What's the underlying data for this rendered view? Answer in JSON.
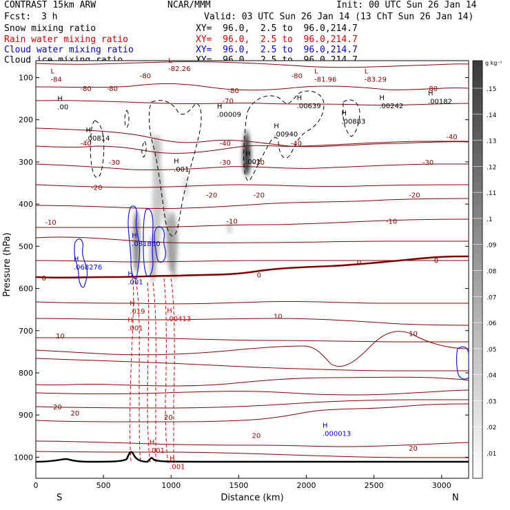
{
  "header": {
    "model": "CONTRAST 15km ARW",
    "org": "NCAR/MMM",
    "init": "Init: 00 UTC Sun 26 Jan 14",
    "fcst_label": "Fcst:",
    "fcst_value": "3 h",
    "valid": "Valid: 03 UTC Sun 26 Jan 14 (13 ChT Sun 26 Jan 14)"
  },
  "legend": [
    {
      "name": "Snow mixing ratio",
      "xy": "XY=  96.0,  2.5 to  96.0,214.7",
      "color": "#000000"
    },
    {
      "name": "Rain water mixing ratio",
      "xy": "XY=  96.0,  2.5 to  96.0,214.7",
      "color": "#cc0000"
    },
    {
      "name": "Cloud water mixing ratio",
      "xy": "XY=  96.0,  2.5 to  96.0,214.7",
      "color": "#0000cc"
    },
    {
      "name": "Cloud ice mixing ratio",
      "xy": "XY=  96.0,  2.5 to  96.0,214.7",
      "color": "#000000"
    }
  ],
  "chart_data": {
    "type": "cross-section",
    "title": "CONTRAST 15km ARW cross section",
    "xlabel": "Distance (km)",
    "ylabel": "Pressure (hPa)",
    "xlim": [
      0,
      3200
    ],
    "ylim": [
      1050,
      60
    ],
    "x_ticks": [
      0,
      500,
      1000,
      1500,
      2000,
      2500,
      3000
    ],
    "y_ticks": [
      100,
      200,
      300,
      400,
      500,
      600,
      700,
      800,
      900,
      1000
    ],
    "end_labels": {
      "left": "S",
      "right": "N"
    },
    "colorbar": {
      "unit": "g kg⁻¹",
      "ticks": [
        ".15",
        ".14",
        ".13",
        ".12",
        ".11",
        ".1",
        ".09",
        ".08",
        ".07",
        ".06",
        ".05",
        ".04",
        ".03",
        ".02",
        ".01"
      ]
    },
    "temperature_contours": [
      {
        "label": "-80",
        "x": 1930,
        "p": 95
      },
      {
        "label": "-80",
        "x": 1460,
        "p": 130
      },
      {
        "label": "-80",
        "x": 2930,
        "p": 125
      },
      {
        "label": "-80",
        "x": 370,
        "p": 125
      },
      {
        "label": "-80",
        "x": 565,
        "p": 125
      },
      {
        "label": "-80",
        "x": 810,
        "p": 95
      },
      {
        "label": "-70",
        "x": 1420,
        "p": 155
      },
      {
        "label": "-40",
        "x": 1400,
        "p": 255
      },
      {
        "label": "-40",
        "x": 1925,
        "p": 255
      },
      {
        "label": "-40",
        "x": 3075,
        "p": 240
      },
      {
        "label": "-40",
        "x": 370,
        "p": 255
      },
      {
        "label": "-30",
        "x": 580,
        "p": 300
      },
      {
        "label": "-30",
        "x": 1400,
        "p": 300
      },
      {
        "label": "-30",
        "x": 1650,
        "p": 300
      },
      {
        "label": "-30",
        "x": 2900,
        "p": 300
      },
      {
        "label": "-20",
        "x": 450,
        "p": 360
      },
      {
        "label": "-20",
        "x": 1300,
        "p": 378
      },
      {
        "label": "-20",
        "x": 1650,
        "p": 378
      },
      {
        "label": "-20",
        "x": 2800,
        "p": 378
      },
      {
        "label": "-10",
        "x": 110,
        "p": 442
      },
      {
        "label": "-10",
        "x": 1450,
        "p": 440
      },
      {
        "label": "-10",
        "x": 2630,
        "p": 440
      },
      {
        "label": "0",
        "x": 60,
        "p": 575
      },
      {
        "label": "0",
        "x": 1650,
        "p": 567
      },
      {
        "label": "0",
        "x": 2390,
        "p": 538
      },
      {
        "label": "0",
        "x": 2960,
        "p": 533
      },
      {
        "label": "10",
        "x": 180,
        "p": 712
      },
      {
        "label": "10",
        "x": 1790,
        "p": 665
      },
      {
        "label": "10",
        "x": 2790,
        "p": 706
      },
      {
        "label": "20",
        "x": 290,
        "p": 895
      },
      {
        "label": "20",
        "x": 980,
        "p": 905
      },
      {
        "label": "20",
        "x": 1630,
        "p": 948
      },
      {
        "label": "20",
        "x": 2790,
        "p": 978
      },
      {
        "label": "20",
        "x": 160,
        "p": 880
      }
    ],
    "extrema": [
      {
        "kind": "L",
        "value": "-84",
        "x": 140,
        "p": 100,
        "color": "#800000"
      },
      {
        "kind": "L",
        "value": "-82.26",
        "x": 1010,
        "p": 75,
        "color": "#800000"
      },
      {
        "kind": "L",
        "value": "-81.96",
        "x": 2090,
        "p": 100,
        "color": "#800000"
      },
      {
        "kind": "L",
        "value": "-83.29",
        "x": 2460,
        "p": 100,
        "color": "#800000"
      },
      {
        "kind": "H",
        "value": ".00",
        "x": 190,
        "p": 165,
        "color": "#000000"
      },
      {
        "kind": "H",
        "value": ".00009",
        "x": 1370,
        "p": 183,
        "color": "#000000"
      },
      {
        "kind": "H",
        "value": ".00639",
        "x": 1960,
        "p": 163,
        "color": "#000000"
      },
      {
        "kind": "H",
        "value": ".00242",
        "x": 2570,
        "p": 163,
        "color": "#000000"
      },
      {
        "kind": "H",
        "value": ".00182",
        "x": 2930,
        "p": 152,
        "color": "#000000"
      },
      {
        "kind": "H",
        "value": ".00940",
        "x": 1790,
        "p": 230,
        "color": "#000000"
      },
      {
        "kind": "H",
        "value": ".00883",
        "x": 2290,
        "p": 200,
        "color": "#000000"
      },
      {
        "kind": "H",
        "value": ".00814",
        "x": 400,
        "p": 240,
        "color": "#000000"
      },
      {
        "kind": "H",
        "value": ".001",
        "x": 1050,
        "p": 313,
        "color": "#000000"
      },
      {
        "kind": "H",
        "value": ".001",
        "x": 1580,
        "p": 295,
        "color": "#000000"
      },
      {
        "kind": "H",
        "value": ".081860",
        "x": 740,
        "p": 490,
        "color": "#0000cc"
      },
      {
        "kind": "H",
        "value": ".068276",
        "x": 310,
        "p": 545,
        "color": "#0000cc"
      },
      {
        "kind": "H",
        "value": ".001",
        "x": 710,
        "p": 580,
        "color": "#0000cc"
      },
      {
        "kind": "H",
        "value": ".000013",
        "x": 2150,
        "p": 940,
        "color": "#0000cc"
      },
      {
        "kind": "H",
        "value": ".019",
        "x": 725,
        "p": 650,
        "color": "#cc0000"
      },
      {
        "kind": "H",
        "value": ".00413",
        "x": 1000,
        "p": 668,
        "color": "#cc0000"
      },
      {
        "kind": "H",
        "value": ".001",
        "x": 710,
        "p": 690,
        "color": "#cc0000"
      },
      {
        "kind": "H",
        "value": ".001",
        "x": 870,
        "p": 980,
        "color": "#cc0000"
      },
      {
        "kind": "H",
        "value": ".001",
        "x": 1020,
        "p": 1018,
        "color": "#cc0000"
      }
    ]
  }
}
